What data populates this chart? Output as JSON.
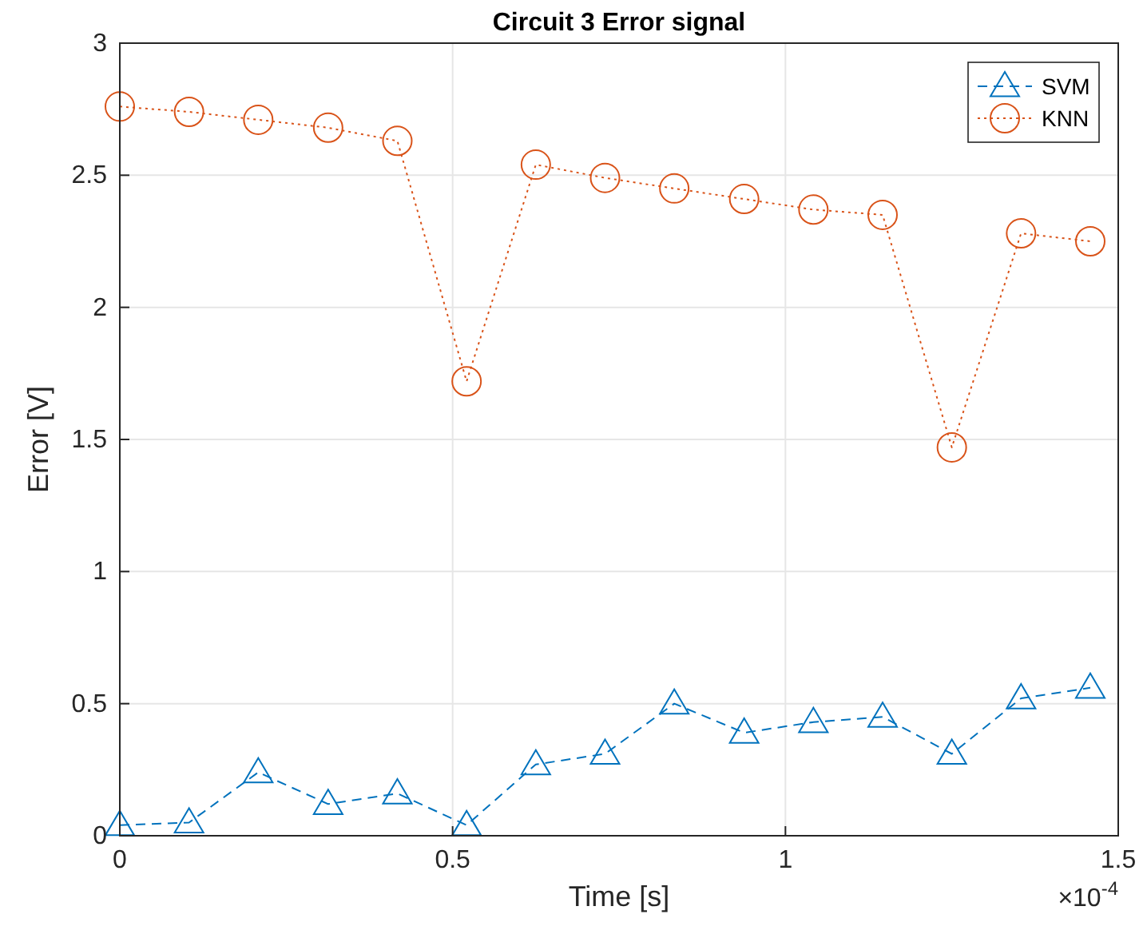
{
  "chart_data": {
    "type": "line",
    "title": "Circuit 3 Error signal",
    "xlabel": "Time [s]",
    "ylabel": "Error [V]",
    "x": [
      0,
      0.104,
      0.208,
      0.313,
      0.417,
      0.521,
      0.625,
      0.729,
      0.833,
      0.938,
      1.042,
      1.146,
      1.25,
      1.354,
      1.458
    ],
    "series": [
      {
        "name": "SVM",
        "color": "#0072bd",
        "marker": "triangle",
        "line_style": "dashed",
        "values": [
          0.04,
          0.05,
          0.24,
          0.12,
          0.16,
          0.04,
          0.27,
          0.31,
          0.5,
          0.39,
          0.43,
          0.45,
          0.31,
          0.52,
          0.56
        ]
      },
      {
        "name": "KNN",
        "color": "#d95319",
        "marker": "circle",
        "line_style": "dotted",
        "values": [
          2.76,
          2.74,
          2.71,
          2.68,
          2.63,
          1.72,
          2.54,
          2.49,
          2.45,
          2.41,
          2.37,
          2.35,
          1.47,
          2.28,
          2.25
        ]
      }
    ],
    "xlim": [
      0,
      1.5
    ],
    "xticks": [
      0,
      0.5,
      1,
      1.5
    ],
    "ylim": [
      0,
      3
    ],
    "yticks": [
      0,
      0.5,
      1,
      1.5,
      2,
      2.5,
      3
    ],
    "annotations": [
      "×10$^{-4}$"
    ],
    "grid": true,
    "legend": "top right"
  }
}
